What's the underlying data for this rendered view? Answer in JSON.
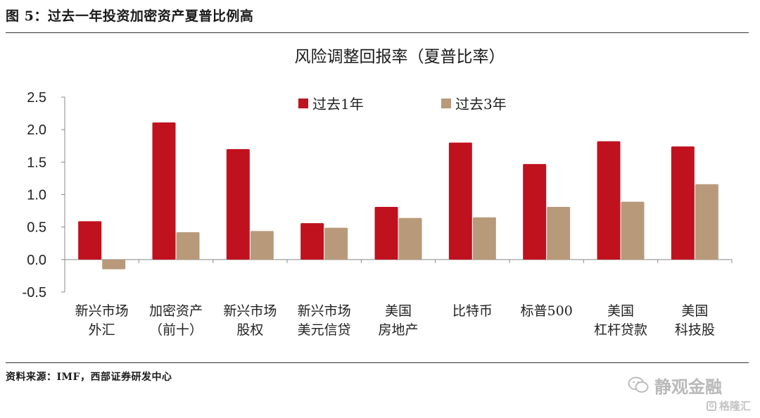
{
  "figure_title": "图 5：过去一年投资加密资产夏普比例高",
  "source_note": "资料来源：IMF，西部证券研发中心",
  "watermark": {
    "main": "静观金融",
    "secondary": "格隆汇",
    "secondary_badge": "G"
  },
  "colors": {
    "series1": "#c0111f",
    "series2": "#b89a7a",
    "axis": "#888888",
    "text": "#222222"
  },
  "chart_data": {
    "type": "bar",
    "title": "风险调整回报率（夏普比率）",
    "categories": [
      [
        "新兴市场",
        "外汇"
      ],
      [
        "加密资产",
        "（前十）"
      ],
      [
        "新兴市场",
        "股权"
      ],
      [
        "新兴市场",
        "美元信贷"
      ],
      [
        "美国",
        "房地产"
      ],
      [
        "比特币"
      ],
      [
        "标普500"
      ],
      [
        "美国",
        "杠杆贷款"
      ],
      [
        "美国",
        "科技股"
      ]
    ],
    "series": [
      {
        "name": "过去1年",
        "values": [
          0.59,
          2.11,
          1.7,
          0.56,
          0.81,
          1.8,
          1.47,
          1.82,
          1.74
        ]
      },
      {
        "name": "过去3年",
        "values": [
          -0.15,
          0.42,
          0.44,
          0.49,
          0.64,
          0.65,
          0.81,
          0.89,
          1.16
        ]
      }
    ],
    "yticks": [
      "2.5",
      "2.0",
      "1.5",
      "1.0",
      "0.5",
      "0.0",
      "-0.5"
    ],
    "ylim": [
      -0.5,
      2.5
    ],
    "grid": false,
    "legend_position": "top-center"
  }
}
